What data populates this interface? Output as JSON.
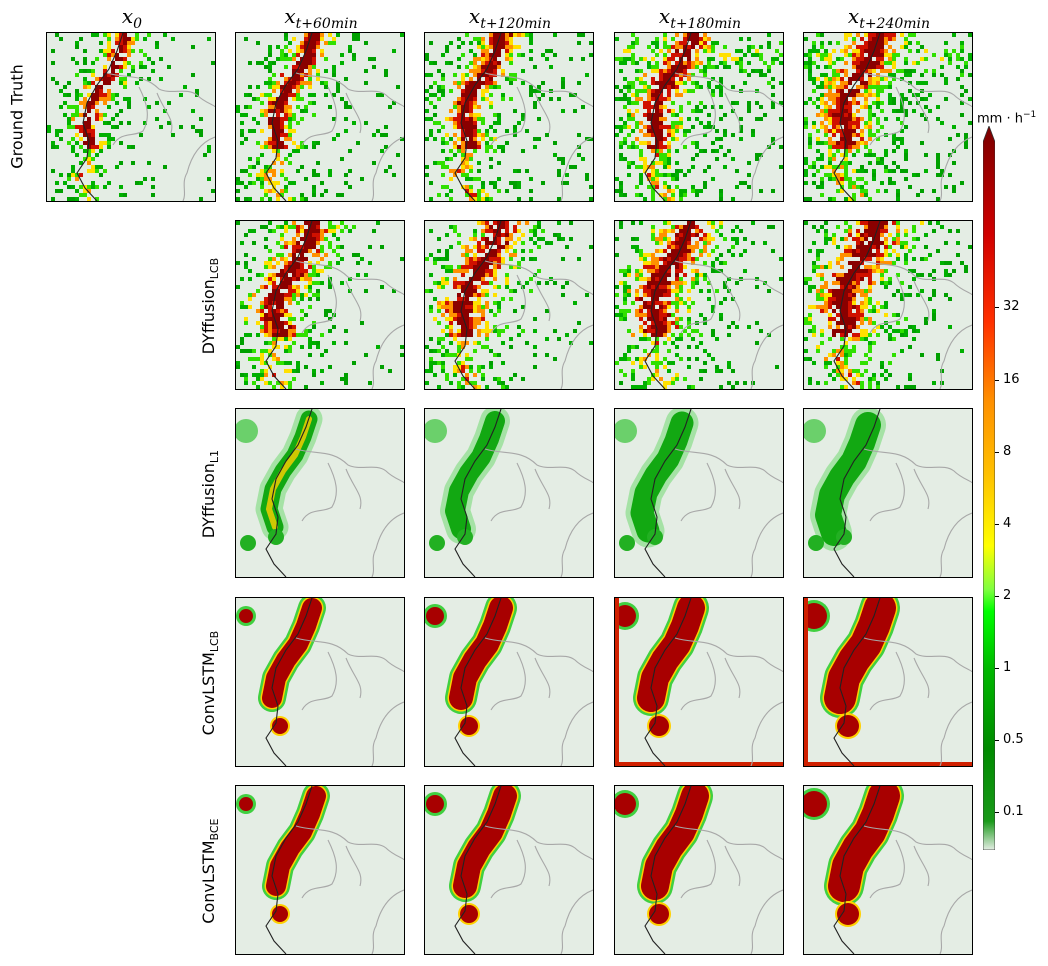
{
  "chart_data": {
    "type": "heatmap",
    "columns": [
      {
        "base": "x",
        "sub": "0"
      },
      {
        "base": "x",
        "sub": "t+60min"
      },
      {
        "base": "x",
        "sub": "t+120min"
      },
      {
        "base": "x",
        "sub": "t+180min"
      },
      {
        "base": "x",
        "sub": "t+240min"
      }
    ],
    "rows": [
      {
        "base": "Ground Truth",
        "sub": "",
        "panels": [
          0,
          1,
          2,
          3,
          4
        ],
        "style": "gt"
      },
      {
        "base": "DYffusion",
        "sub": "LCB",
        "panels": [
          1,
          2,
          3,
          4
        ],
        "style": "dylcb"
      },
      {
        "base": "DYffusion",
        "sub": "L1",
        "panels": [
          1,
          2,
          3,
          4
        ],
        "style": "dyl1"
      },
      {
        "base": "ConvLSTM",
        "sub": "LCB",
        "panels": [
          1,
          2,
          3,
          4
        ],
        "style": "clcb"
      },
      {
        "base": "ConvLSTM",
        "sub": "BCE",
        "panels": [
          1,
          2,
          3,
          4
        ],
        "style": "cbce"
      }
    ],
    "colorbar": {
      "unit_base": "mm · h",
      "unit_exp": "−1",
      "ticks": [
        "0.1",
        "0.5",
        "1",
        "2",
        "4",
        "8",
        "16",
        "32"
      ],
      "colors": [
        "#e4ede4",
        "#008c00",
        "#00d800",
        "#ffff00",
        "#ffa000",
        "#ff4000",
        "#c00000",
        "#800000"
      ]
    }
  }
}
